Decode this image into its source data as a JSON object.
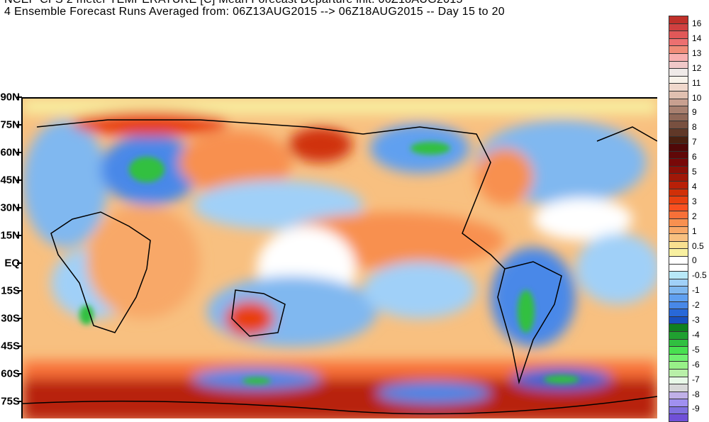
{
  "header": {
    "title_line1_partial": "NCEP CFS 2 meter TEMPERATURE [C] Mean Forecast Departure init: 06Z18AUG2015",
    "title_line2": "4 Ensemble Forecast Runs Averaged from: 06Z13AUG2015 --> 06Z18AUG2015 -- Day 15 to 20"
  },
  "map": {
    "latitude_labels": [
      "90N",
      "75N",
      "60N",
      "45N",
      "30N",
      "15N",
      "EQ",
      "15S",
      "30S",
      "45S",
      "60S",
      "75S"
    ],
    "projection": "equirectangular, Pacific-centered",
    "colors": {
      "warm": "#f8a868",
      "hot": "#d03008",
      "cool": "#80b8f0",
      "cold": "#2868d8",
      "very_cold": "#30c040",
      "neutral": "#ffffff"
    }
  },
  "colorbar": {
    "labels": [
      "16",
      "14",
      "13",
      "12",
      "11",
      "10",
      "9",
      "8",
      "7",
      "6",
      "5",
      "4",
      "3",
      "2",
      "1",
      "0.5",
      "0",
      "-0.5",
      "-1",
      "-2",
      "-3",
      "-4",
      "-5",
      "-6",
      "-7",
      "-8",
      "-9"
    ],
    "colors": [
      "#c0302a",
      "#d04040",
      "#e05858",
      "#ec7070",
      "#f08c78",
      "#f8b0b0",
      "#f0c8c8",
      "#f0eae8",
      "#f8f2ea",
      "#f0d8cc",
      "#e0c0b0",
      "#c8a090",
      "#a88070",
      "#906858",
      "#785040",
      "#603828",
      "#4a2010",
      "#500808",
      "#600808",
      "#780808",
      "#8c1008",
      "#a01808",
      "#b82008",
      "#d03008",
      "#e84010",
      "#f85020",
      "#f87038",
      "#f89050",
      "#f8a868",
      "#f8c080",
      "#f8e090",
      "#f8f0a0",
      "#ffffff",
      "#ffffff",
      "#b8e8f8",
      "#a0d0f8",
      "#80b8f0",
      "#60a0f0",
      "#4888e8",
      "#2868d8",
      "#1850c0",
      "#108020",
      "#20a030",
      "#30c040",
      "#48e050",
      "#70f070",
      "#98f088",
      "#b8f0a8",
      "#e8f8e8",
      "#d8d8d8",
      "#c0b0e8",
      "#a090f0",
      "#8070e0",
      "#7050d8"
    ]
  }
}
